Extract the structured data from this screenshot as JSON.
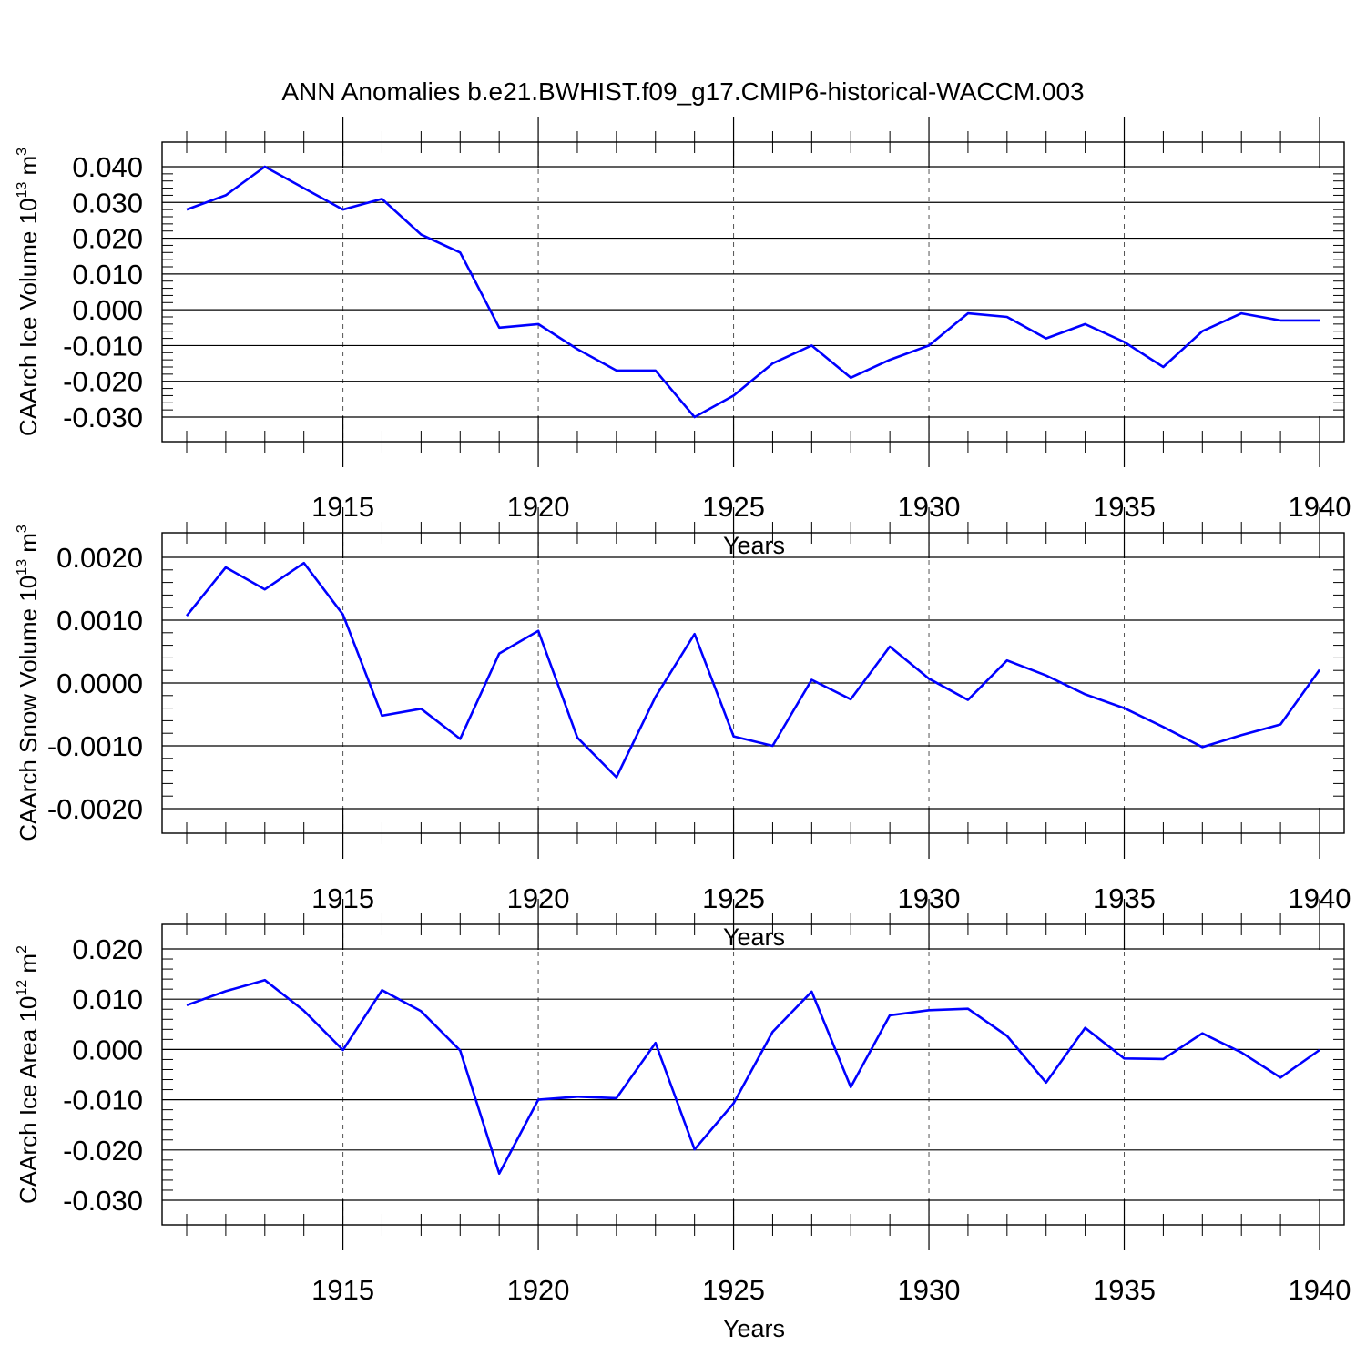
{
  "title": "ANN Anomalies b.e21.BWHIST.f09_g17.CMIP6-historical-WACCM.003",
  "line_color": "#0000ff",
  "chart_data": [
    {
      "type": "line",
      "ylabel": "CAArch Ice Volume 10",
      "ylabel_sup": "13",
      "ylabel_unit": "m",
      "ylabel_unit_sup": "3",
      "xlabel": "Years",
      "xlim": [
        1911,
        1940
      ],
      "ylim": [
        -0.03,
        0.04
      ],
      "yticks": [
        -0.03,
        -0.02,
        -0.01,
        0.0,
        0.01,
        0.02,
        0.03,
        0.04
      ],
      "ytick_labels": [
        "-0.030",
        "-0.020",
        "-0.010",
        "0.000",
        "0.010",
        "0.020",
        "0.030",
        "0.040"
      ],
      "xticks": [
        1915,
        1920,
        1925,
        1930,
        1935,
        1940
      ],
      "xtick_labels": [
        "1915",
        "1920",
        "1925",
        "1930",
        "1935",
        "1940"
      ],
      "x": [
        1911,
        1912,
        1913,
        1914,
        1915,
        1916,
        1917,
        1918,
        1919,
        1920,
        1921,
        1922,
        1923,
        1924,
        1925,
        1926,
        1927,
        1928,
        1929,
        1930,
        1931,
        1932,
        1933,
        1934,
        1935,
        1936,
        1937,
        1938,
        1939,
        1940
      ],
      "values": [
        0.028,
        0.032,
        0.04,
        0.034,
        0.028,
        0.031,
        0.021,
        0.016,
        -0.005,
        -0.004,
        -0.011,
        -0.017,
        -0.017,
        -0.03,
        -0.024,
        -0.015,
        -0.01,
        -0.019,
        -0.014,
        -0.01,
        -0.001,
        -0.002,
        -0.008,
        -0.004,
        -0.009,
        -0.016,
        -0.006,
        -0.001,
        -0.003,
        -0.003
      ]
    },
    {
      "type": "line",
      "ylabel": "CAArch Snow Volume 10",
      "ylabel_sup": "13",
      "ylabel_unit": "m",
      "ylabel_unit_sup": "3",
      "xlabel": "Years",
      "xlim": [
        1911,
        1940
      ],
      "ylim": [
        -0.002,
        0.002
      ],
      "yticks": [
        -0.002,
        -0.001,
        0.0,
        0.001,
        0.002
      ],
      "ytick_labels": [
        "-0.0020",
        "-0.0010",
        "0.0000",
        "0.0010",
        "0.0020"
      ],
      "xticks": [
        1915,
        1920,
        1925,
        1930,
        1935,
        1940
      ],
      "xtick_labels": [
        "1915",
        "1920",
        "1925",
        "1930",
        "1935",
        "1940"
      ],
      "x": [
        1911,
        1912,
        1913,
        1914,
        1915,
        1916,
        1917,
        1918,
        1919,
        1920,
        1921,
        1922,
        1923,
        1924,
        1925,
        1926,
        1927,
        1928,
        1929,
        1930,
        1931,
        1932,
        1933,
        1934,
        1935,
        1936,
        1937,
        1938,
        1939,
        1940
      ],
      "values": [
        0.00107,
        0.00184,
        0.00149,
        0.00191,
        0.00109,
        -0.00052,
        -0.00041,
        -0.00089,
        0.00047,
        0.00083,
        -0.00087,
        -0.0015,
        -0.00022,
        0.00078,
        -0.00085,
        -0.001,
        5e-05,
        -0.00026,
        0.00058,
        7e-05,
        -0.00027,
        0.00036,
        0.00012,
        -0.00018,
        -0.0004,
        -0.0007,
        -0.00102,
        -0.00083,
        -0.00066,
        0.00021
      ]
    },
    {
      "type": "line",
      "ylabel": "CAArch Ice Area 10",
      "ylabel_sup": "12",
      "ylabel_unit": "m",
      "ylabel_unit_sup": "2",
      "xlabel": "Years",
      "xlim": [
        1911,
        1940
      ],
      "ylim": [
        -0.03,
        0.02
      ],
      "yticks": [
        -0.03,
        -0.02,
        -0.01,
        0.0,
        0.01,
        0.02
      ],
      "ytick_labels": [
        "-0.030",
        "-0.020",
        "-0.010",
        "0.000",
        "0.010",
        "0.020"
      ],
      "xticks": [
        1915,
        1920,
        1925,
        1930,
        1935,
        1940
      ],
      "xtick_labels": [
        "1915",
        "1920",
        "1925",
        "1930",
        "1935",
        "1940"
      ],
      "x": [
        1911,
        1912,
        1913,
        1914,
        1915,
        1916,
        1917,
        1918,
        1919,
        1920,
        1921,
        1922,
        1923,
        1924,
        1925,
        1926,
        1927,
        1928,
        1929,
        1930,
        1931,
        1932,
        1933,
        1934,
        1935,
        1936,
        1937,
        1938,
        1939,
        1940
      ],
      "values": [
        0.0088,
        0.0116,
        0.0138,
        0.0077,
        -0.0001,
        0.0118,
        0.0076,
        -0.0002,
        -0.0247,
        -0.01,
        -0.0094,
        -0.0097,
        0.0013,
        -0.0199,
        -0.0107,
        0.0035,
        0.0115,
        -0.0075,
        0.0068,
        0.0078,
        0.0081,
        0.0027,
        -0.0066,
        0.0043,
        -0.0018,
        -0.0019,
        0.0032,
        -0.0006,
        -0.0056,
        -0.0001
      ]
    }
  ]
}
